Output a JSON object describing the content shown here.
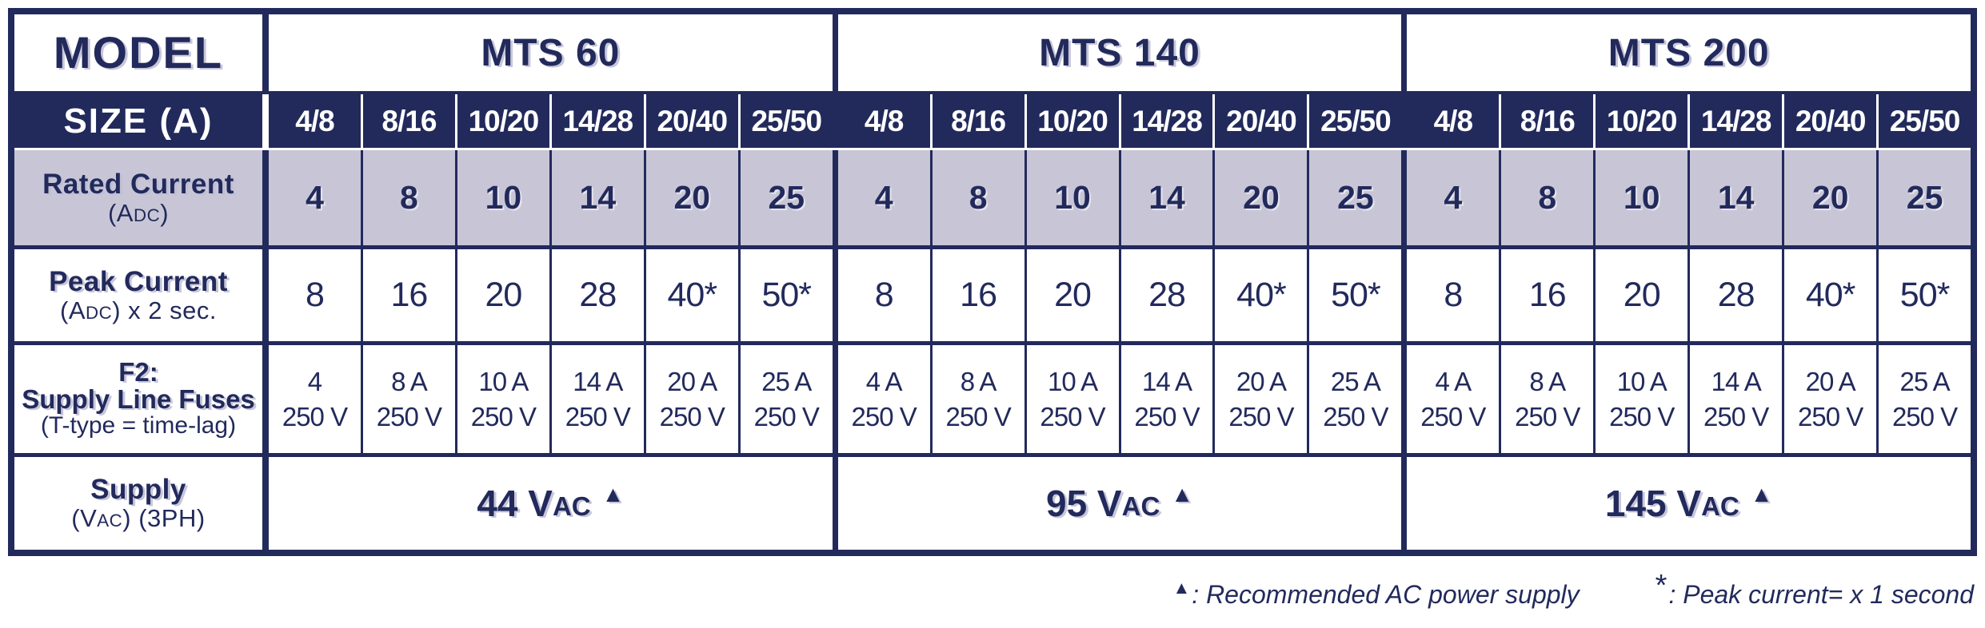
{
  "colors": {
    "navy": "#222a5c",
    "lavender": "#c8c6d6",
    "white": "#ffffff"
  },
  "header": {
    "model": "MODEL",
    "size": "SIZE (A)"
  },
  "labels": {
    "rated": {
      "l1": "Rated Current",
      "l2a": "(A",
      "l2b": "DC",
      "l2c": ")"
    },
    "peak": {
      "l1": "Peak Current",
      "l2a": "(A",
      "l2b": "DC",
      "l2c": ") x 2 sec."
    },
    "fuse": {
      "l1": "F2:",
      "l2": "Supply Line Fuses",
      "l3": "(T-type = time-lag)"
    },
    "supply": {
      "l1": "Supply",
      "l2a": "(V",
      "l2b": "AC",
      "l2c": ") (3PH)"
    }
  },
  "groups": [
    {
      "name": "MTS 60",
      "sizes": [
        "4/8",
        "8/16",
        "10/20",
        "14/28",
        "20/40",
        "25/50"
      ],
      "rated": [
        "4",
        "8",
        "10",
        "14",
        "20",
        "25"
      ],
      "peak": [
        "8",
        "16",
        "20",
        "28",
        "40*",
        "50*"
      ],
      "fuses": [
        {
          "amp": "4",
          "volt": "250 V"
        },
        {
          "amp": "8 A",
          "volt": "250 V"
        },
        {
          "amp": "10 A",
          "volt": "250 V"
        },
        {
          "amp": "14 A",
          "volt": "250 V"
        },
        {
          "amp": "20 A",
          "volt": "250 V"
        },
        {
          "amp": "25 A",
          "volt": "250 V"
        }
      ],
      "supply": {
        "value": "44 V",
        "small": "AC",
        "mark": "▲"
      }
    },
    {
      "name": "MTS 140",
      "sizes": [
        "4/8",
        "8/16",
        "10/20",
        "14/28",
        "20/40",
        "25/50"
      ],
      "rated": [
        "4",
        "8",
        "10",
        "14",
        "20",
        "25"
      ],
      "peak": [
        "8",
        "16",
        "20",
        "28",
        "40*",
        "50*"
      ],
      "fuses": [
        {
          "amp": "4 A",
          "volt": "250 V"
        },
        {
          "amp": "8 A",
          "volt": "250 V"
        },
        {
          "amp": "10 A",
          "volt": "250 V"
        },
        {
          "amp": "14 A",
          "volt": "250 V"
        },
        {
          "amp": "20 A",
          "volt": "250 V"
        },
        {
          "amp": "25 A",
          "volt": "250 V"
        }
      ],
      "supply": {
        "value": "95 V",
        "small": "AC",
        "mark": "▲"
      }
    },
    {
      "name": "MTS 200",
      "sizes": [
        "4/8",
        "8/16",
        "10/20",
        "14/28",
        "20/40",
        "25/50"
      ],
      "rated": [
        "4",
        "8",
        "10",
        "14",
        "20",
        "25"
      ],
      "peak": [
        "8",
        "16",
        "20",
        "28",
        "40*",
        "50*"
      ],
      "fuses": [
        {
          "amp": "4 A",
          "volt": "250 V"
        },
        {
          "amp": "8 A",
          "volt": "250 V"
        },
        {
          "amp": "10 A",
          "volt": "250 V"
        },
        {
          "amp": "14 A",
          "volt": "250 V"
        },
        {
          "amp": "20 A",
          "volt": "250 V"
        },
        {
          "amp": "25 A",
          "volt": "250 V"
        }
      ],
      "supply": {
        "value": "145 V",
        "small": "AC",
        "mark": "▲"
      }
    }
  ],
  "footnotes": {
    "triangle_mark": "▲",
    "triangle_text": ": Recommended AC power supply",
    "star_mark": "*",
    "star_text": ": Peak current= x 1 second"
  }
}
